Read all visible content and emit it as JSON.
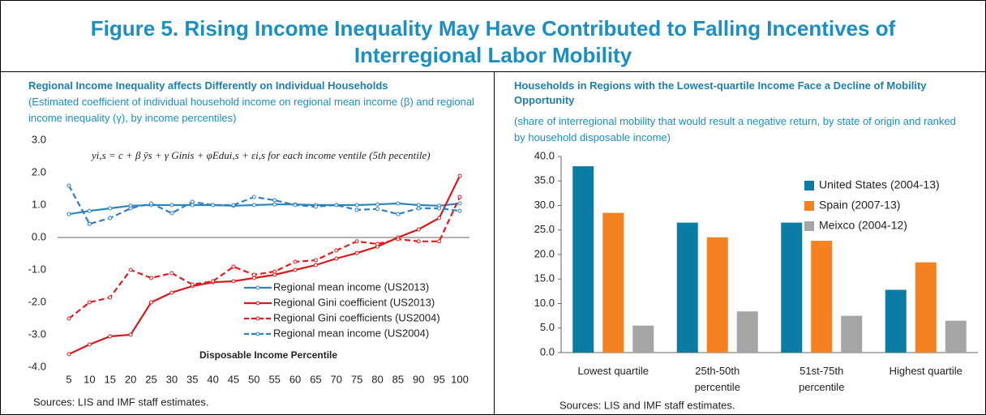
{
  "title": "Figure 5. Rising Income Inequality May Have Contributed to Falling Incentives of Interregional Labor Mobility",
  "chart_data": [
    {
      "type": "line",
      "title": "Regional Income Inequality affects Differently on Individual Households",
      "subtitle": "(Estimated coefficient of individual household income on regional mean income (β) and regional income inequality (γ), by income percentiles)",
      "annotation": "yi,s = c + β ȳs + γ Ginis + φEdui,s + εi,s    for each income ventile (5th pecentile)",
      "x_label": "Disposable Income Percentile",
      "source": "Sources: LIS and IMF staff estimates.",
      "x": [
        5,
        10,
        15,
        20,
        25,
        30,
        35,
        40,
        45,
        50,
        55,
        60,
        65,
        70,
        75,
        80,
        85,
        90,
        95,
        100
      ],
      "xlim": [
        5,
        100
      ],
      "xticks": [
        5,
        10,
        15,
        20,
        25,
        30,
        35,
        40,
        45,
        50,
        55,
        60,
        65,
        70,
        75,
        80,
        85,
        90,
        95,
        100
      ],
      "ylim": [
        -4,
        3
      ],
      "yticks": [
        {
          "value": -4,
          "label": "-4.0"
        },
        {
          "value": -3,
          "label": "-3.0"
        },
        {
          "value": -2,
          "label": "-2.0"
        },
        {
          "value": -1,
          "label": "-1.0"
        },
        {
          "value": 0,
          "label": "0.0"
        },
        {
          "value": 1,
          "label": "1.0"
        },
        {
          "value": 2,
          "label": "2.0"
        },
        {
          "value": 3,
          "label": "3.0"
        }
      ],
      "series": [
        {
          "name": "Regional mean income (US2013)",
          "color": "#2a86bf",
          "dashed": false,
          "values": [
            0.72,
            0.82,
            0.9,
            0.98,
            1.0,
            1.0,
            1.0,
            1.0,
            0.98,
            1.0,
            1.02,
            1.02,
            1.0,
            1.0,
            1.0,
            1.02,
            1.05,
            1.0,
            0.98,
            1.05
          ]
        },
        {
          "name": "Regional Gini coefficient (US2013)",
          "color": "#d7191c",
          "dashed": false,
          "values": [
            -3.6,
            -3.3,
            -3.05,
            -3.0,
            -2.0,
            -1.7,
            -1.5,
            -1.38,
            -1.35,
            -1.25,
            -1.15,
            -1.0,
            -0.85,
            -0.65,
            -0.48,
            -0.28,
            0.0,
            0.25,
            0.6,
            1.9
          ]
        },
        {
          "name": "Regional Gini coefficients (US2004)",
          "color": "#e8191c",
          "dashed": true,
          "values": [
            -2.5,
            -2.0,
            -1.85,
            -1.0,
            -1.25,
            -1.1,
            -1.45,
            -1.35,
            -0.9,
            -1.15,
            -1.05,
            -0.75,
            -0.7,
            -0.4,
            -0.12,
            -0.2,
            -0.05,
            -0.12,
            -0.12,
            1.25
          ]
        },
        {
          "name": "Regional mean income (US2004)",
          "color": "#2f7fc6",
          "dashed": true,
          "values": [
            1.6,
            0.42,
            0.6,
            0.9,
            1.05,
            0.75,
            1.1,
            1.0,
            1.0,
            1.25,
            1.15,
            1.0,
            0.95,
            1.0,
            0.85,
            0.88,
            0.72,
            0.9,
            0.9,
            0.82
          ]
        }
      ]
    },
    {
      "type": "bar",
      "title": "Households in Regions with the Lowest-quartile Income Face a Decline of Mobility Opportunity",
      "subtitle": "(share of interregional mobility that would result a negative return, by state of origin and ranked by household disposable income)",
      "source": "Sources: LIS and IMF staff estimates.",
      "categories": [
        "Lowest quartile",
        "25th-50th percentile",
        "51st-75th percentile",
        "Highest quartile"
      ],
      "ylim": [
        0,
        40
      ],
      "yticks": [
        {
          "value": 0,
          "label": "0.0"
        },
        {
          "value": 5,
          "label": "5.0"
        },
        {
          "value": 10,
          "label": "10.0"
        },
        {
          "value": 15,
          "label": "15.0"
        },
        {
          "value": 20,
          "label": "20.0"
        },
        {
          "value": 25,
          "label": "25.0"
        },
        {
          "value": 30,
          "label": "30.0"
        },
        {
          "value": 35,
          "label": "35.0"
        },
        {
          "value": 40,
          "label": "40.0"
        }
      ],
      "legend": "upper right",
      "series": [
        {
          "name": "United States (2004-13)",
          "color": "#0b7ca3",
          "values": [
            38.0,
            26.5,
            26.5,
            12.8
          ]
        },
        {
          "name": "Spain (2007-13)",
          "color": "#f58220",
          "values": [
            28.5,
            23.5,
            22.8,
            18.4
          ]
        },
        {
          "name": "Meixco (2004-12)",
          "color": "#a5a5a5",
          "values": [
            5.5,
            8.4,
            7.5,
            6.5
          ]
        }
      ]
    }
  ]
}
